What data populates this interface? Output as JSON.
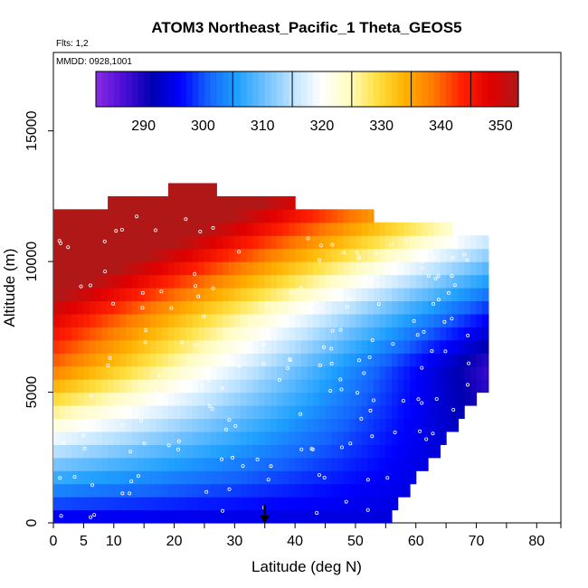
{
  "chart_data": {
    "type": "heatmap",
    "title": "ATOM3 Northeast_Pacific_1 Theta_GEOS5",
    "subtitle_flights": "Flts: 1,2",
    "subtitle_dates": "MMDD: 0928,1001",
    "xlabel": "Latitude (deg N)",
    "ylabel": "Altitude (m)",
    "xlim": [
      0,
      84
    ],
    "ylim": [
      0,
      18000
    ],
    "x_ticks": [
      0,
      5,
      10,
      20,
      30,
      40,
      50,
      60,
      70,
      80
    ],
    "y_ticks": [
      0,
      5000,
      10000,
      15000
    ],
    "colorbar": {
      "range": [
        282,
        353
      ],
      "ticks": [
        290,
        300,
        310,
        320,
        330,
        340,
        350
      ],
      "colors": [
        "#8a2be2",
        "#4b0dd8",
        "#0000b0",
        "#0000ff",
        "#1464ff",
        "#1ea0ff",
        "#6ec0ff",
        "#bfe4ff",
        "#ffffff",
        "#fffcc0",
        "#ffe040",
        "#ffb000",
        "#ff7800",
        "#ff2000",
        "#e00000",
        "#b01818"
      ]
    },
    "marker": {
      "latitude": 35,
      "altitude": 0
    }
  }
}
